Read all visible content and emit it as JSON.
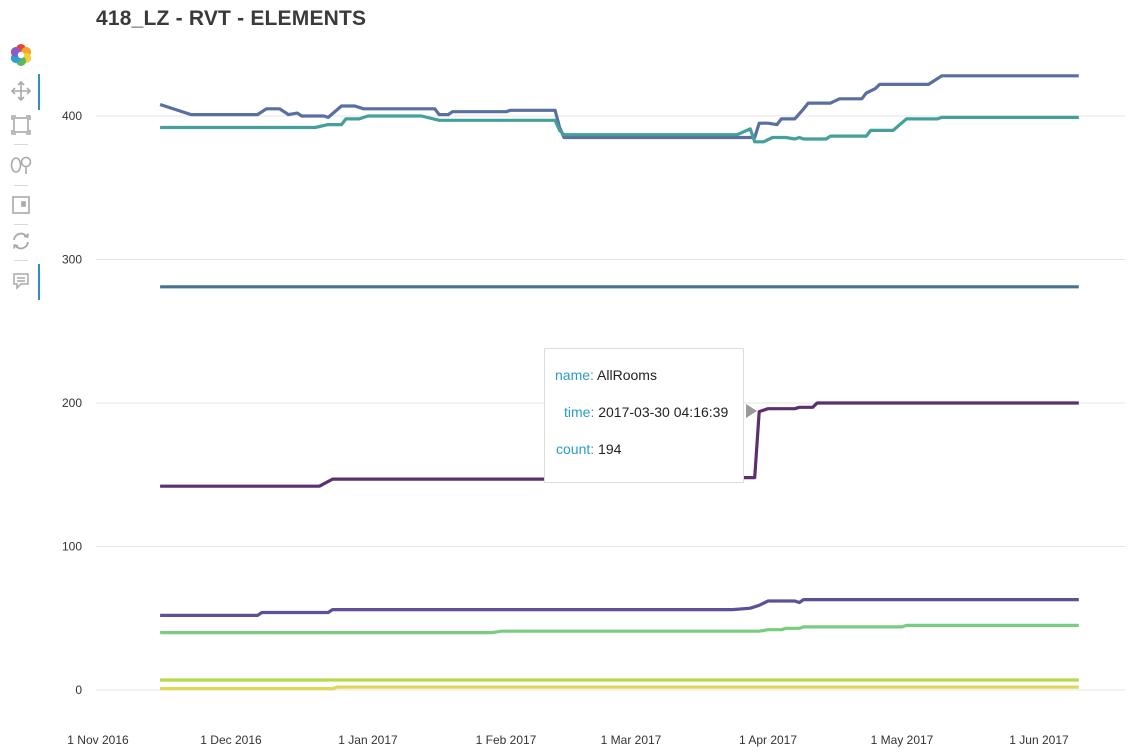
{
  "title": "418_LZ - RVT - ELEMENTS",
  "toolbar": {
    "items": [
      {
        "name": "logo-icon"
      },
      {
        "name": "pan-icon"
      },
      {
        "name": "box-zoom-icon"
      },
      {
        "name": "lasso-select-icon"
      },
      {
        "name": "save-icon"
      },
      {
        "name": "reset-icon"
      },
      {
        "name": "hover-tooltip-icon"
      }
    ]
  },
  "tooltip": {
    "name_key": "name:",
    "name_value": "AllRooms",
    "time_key": "time:",
    "time_value": "2017-03-30 04:16:39",
    "count_key": "count:",
    "count_value": "194"
  },
  "chart_data": {
    "type": "line",
    "title": "418_LZ - RVT - ELEMENTS",
    "xlabel": "",
    "ylabel": "",
    "x_ticks": [
      "1 Nov 2016",
      "1 Dec 2016",
      "1 Jan 2017",
      "1 Feb 2017",
      "1 Mar 2017",
      "1 Apr 2017",
      "1 May 2017",
      "1 Jun 2017"
    ],
    "y_ticks": [
      0,
      100,
      200,
      300,
      400
    ],
    "xlim": [
      "2016-10-27",
      "2017-06-15"
    ],
    "ylim": [
      -5,
      445
    ],
    "grid": "horizontal",
    "series": [
      {
        "color": "#5a6fa0",
        "points": [
          [
            "2016-11-15",
            408
          ],
          [
            "2016-11-22",
            401
          ],
          [
            "2016-12-07",
            401
          ],
          [
            "2016-12-09",
            405
          ],
          [
            "2016-12-12",
            405
          ],
          [
            "2016-12-14",
            401
          ],
          [
            "2016-12-16",
            402
          ],
          [
            "2016-12-17",
            400
          ],
          [
            "2016-12-22",
            400
          ],
          [
            "2016-12-23",
            399
          ],
          [
            "2016-12-26",
            407
          ],
          [
            "2016-12-29",
            407
          ],
          [
            "2016-12-31",
            405
          ],
          [
            "2017-01-16",
            405
          ],
          [
            "2017-01-17",
            401
          ],
          [
            "2017-01-19",
            401
          ],
          [
            "2017-01-20",
            403
          ],
          [
            "2017-02-01",
            403
          ],
          [
            "2017-02-02",
            404
          ],
          [
            "2017-02-12",
            404
          ],
          [
            "2017-02-13",
            392
          ],
          [
            "2017-02-14",
            385
          ],
          [
            "2017-03-29",
            385
          ],
          [
            "2017-03-30",
            395
          ],
          [
            "2017-04-01",
            395
          ],
          [
            "2017-04-03",
            394
          ],
          [
            "2017-04-04",
            398
          ],
          [
            "2017-04-07",
            398
          ],
          [
            "2017-04-09",
            405
          ],
          [
            "2017-04-10",
            409
          ],
          [
            "2017-04-15",
            409
          ],
          [
            "2017-04-17",
            412
          ],
          [
            "2017-04-22",
            412
          ],
          [
            "2017-04-23",
            416
          ],
          [
            "2017-04-25",
            419
          ],
          [
            "2017-04-26",
            422
          ],
          [
            "2017-05-07",
            422
          ],
          [
            "2017-05-10",
            428
          ],
          [
            "2017-06-10",
            428
          ]
        ]
      },
      {
        "color": "#43a09a",
        "points": [
          [
            "2016-11-15",
            392
          ],
          [
            "2016-12-20",
            392
          ],
          [
            "2016-12-23",
            394
          ],
          [
            "2016-12-26",
            394
          ],
          [
            "2016-12-27",
            398
          ],
          [
            "2016-12-30",
            398
          ],
          [
            "2017-01-01",
            400
          ],
          [
            "2017-01-13",
            400
          ],
          [
            "2017-01-17",
            397
          ],
          [
            "2017-02-12",
            397
          ],
          [
            "2017-02-13",
            390
          ],
          [
            "2017-02-14",
            387
          ],
          [
            "2017-03-25",
            387
          ],
          [
            "2017-03-28",
            391
          ],
          [
            "2017-03-29",
            382
          ],
          [
            "2017-03-31",
            382
          ],
          [
            "2017-04-02",
            385
          ],
          [
            "2017-04-05",
            385
          ],
          [
            "2017-04-07",
            384
          ],
          [
            "2017-04-08",
            385
          ],
          [
            "2017-04-09",
            384
          ],
          [
            "2017-04-14",
            384
          ],
          [
            "2017-04-15",
            386
          ],
          [
            "2017-04-23",
            386
          ],
          [
            "2017-04-24",
            390
          ],
          [
            "2017-04-29",
            390
          ],
          [
            "2017-05-02",
            398
          ],
          [
            "2017-05-09",
            398
          ],
          [
            "2017-05-10",
            399
          ],
          [
            "2017-06-10",
            399
          ]
        ]
      },
      {
        "color": "#44738f",
        "points": [
          [
            "2016-11-15",
            281
          ],
          [
            "2017-06-10",
            281
          ]
        ]
      },
      {
        "color": "#5c2f6e",
        "points": [
          [
            "2016-11-15",
            142
          ],
          [
            "2016-12-21",
            142
          ],
          [
            "2016-12-24",
            147
          ],
          [
            "2017-03-25",
            147
          ],
          [
            "2017-03-26",
            148
          ],
          [
            "2017-03-29",
            148
          ],
          [
            "2017-03-30",
            194
          ],
          [
            "2017-04-01",
            196
          ],
          [
            "2017-04-07",
            196
          ],
          [
            "2017-04-08",
            197
          ],
          [
            "2017-04-11",
            197
          ],
          [
            "2017-04-12",
            200
          ],
          [
            "2017-06-10",
            200
          ]
        ]
      },
      {
        "color": "#5e4f96",
        "points": [
          [
            "2016-11-15",
            52
          ],
          [
            "2016-12-07",
            52
          ],
          [
            "2016-12-08",
            54
          ],
          [
            "2016-12-23",
            54
          ],
          [
            "2016-12-24",
            56
          ],
          [
            "2017-03-24",
            56
          ],
          [
            "2017-03-28",
            57
          ],
          [
            "2017-03-30",
            59
          ],
          [
            "2017-04-01",
            62
          ],
          [
            "2017-04-07",
            62
          ],
          [
            "2017-04-08",
            61
          ],
          [
            "2017-04-09",
            63
          ],
          [
            "2017-06-10",
            63
          ]
        ]
      },
      {
        "color": "#79cc80",
        "points": [
          [
            "2016-11-15",
            40
          ],
          [
            "2017-01-29",
            40
          ],
          [
            "2017-01-31",
            41
          ],
          [
            "2017-03-30",
            41
          ],
          [
            "2017-04-01",
            42
          ],
          [
            "2017-04-04",
            42
          ],
          [
            "2017-04-05",
            43
          ],
          [
            "2017-04-08",
            43
          ],
          [
            "2017-04-09",
            44
          ],
          [
            "2017-05-01",
            44
          ],
          [
            "2017-05-02",
            45
          ],
          [
            "2017-06-10",
            45
          ]
        ]
      },
      {
        "color": "#b5d94a",
        "points": [
          [
            "2016-11-15",
            7
          ],
          [
            "2017-06-10",
            7
          ]
        ]
      },
      {
        "color": "#ddd856",
        "points": [
          [
            "2016-11-15",
            1
          ],
          [
            "2016-12-24",
            1
          ],
          [
            "2016-12-25",
            2
          ],
          [
            "2017-06-10",
            2
          ]
        ]
      }
    ]
  }
}
